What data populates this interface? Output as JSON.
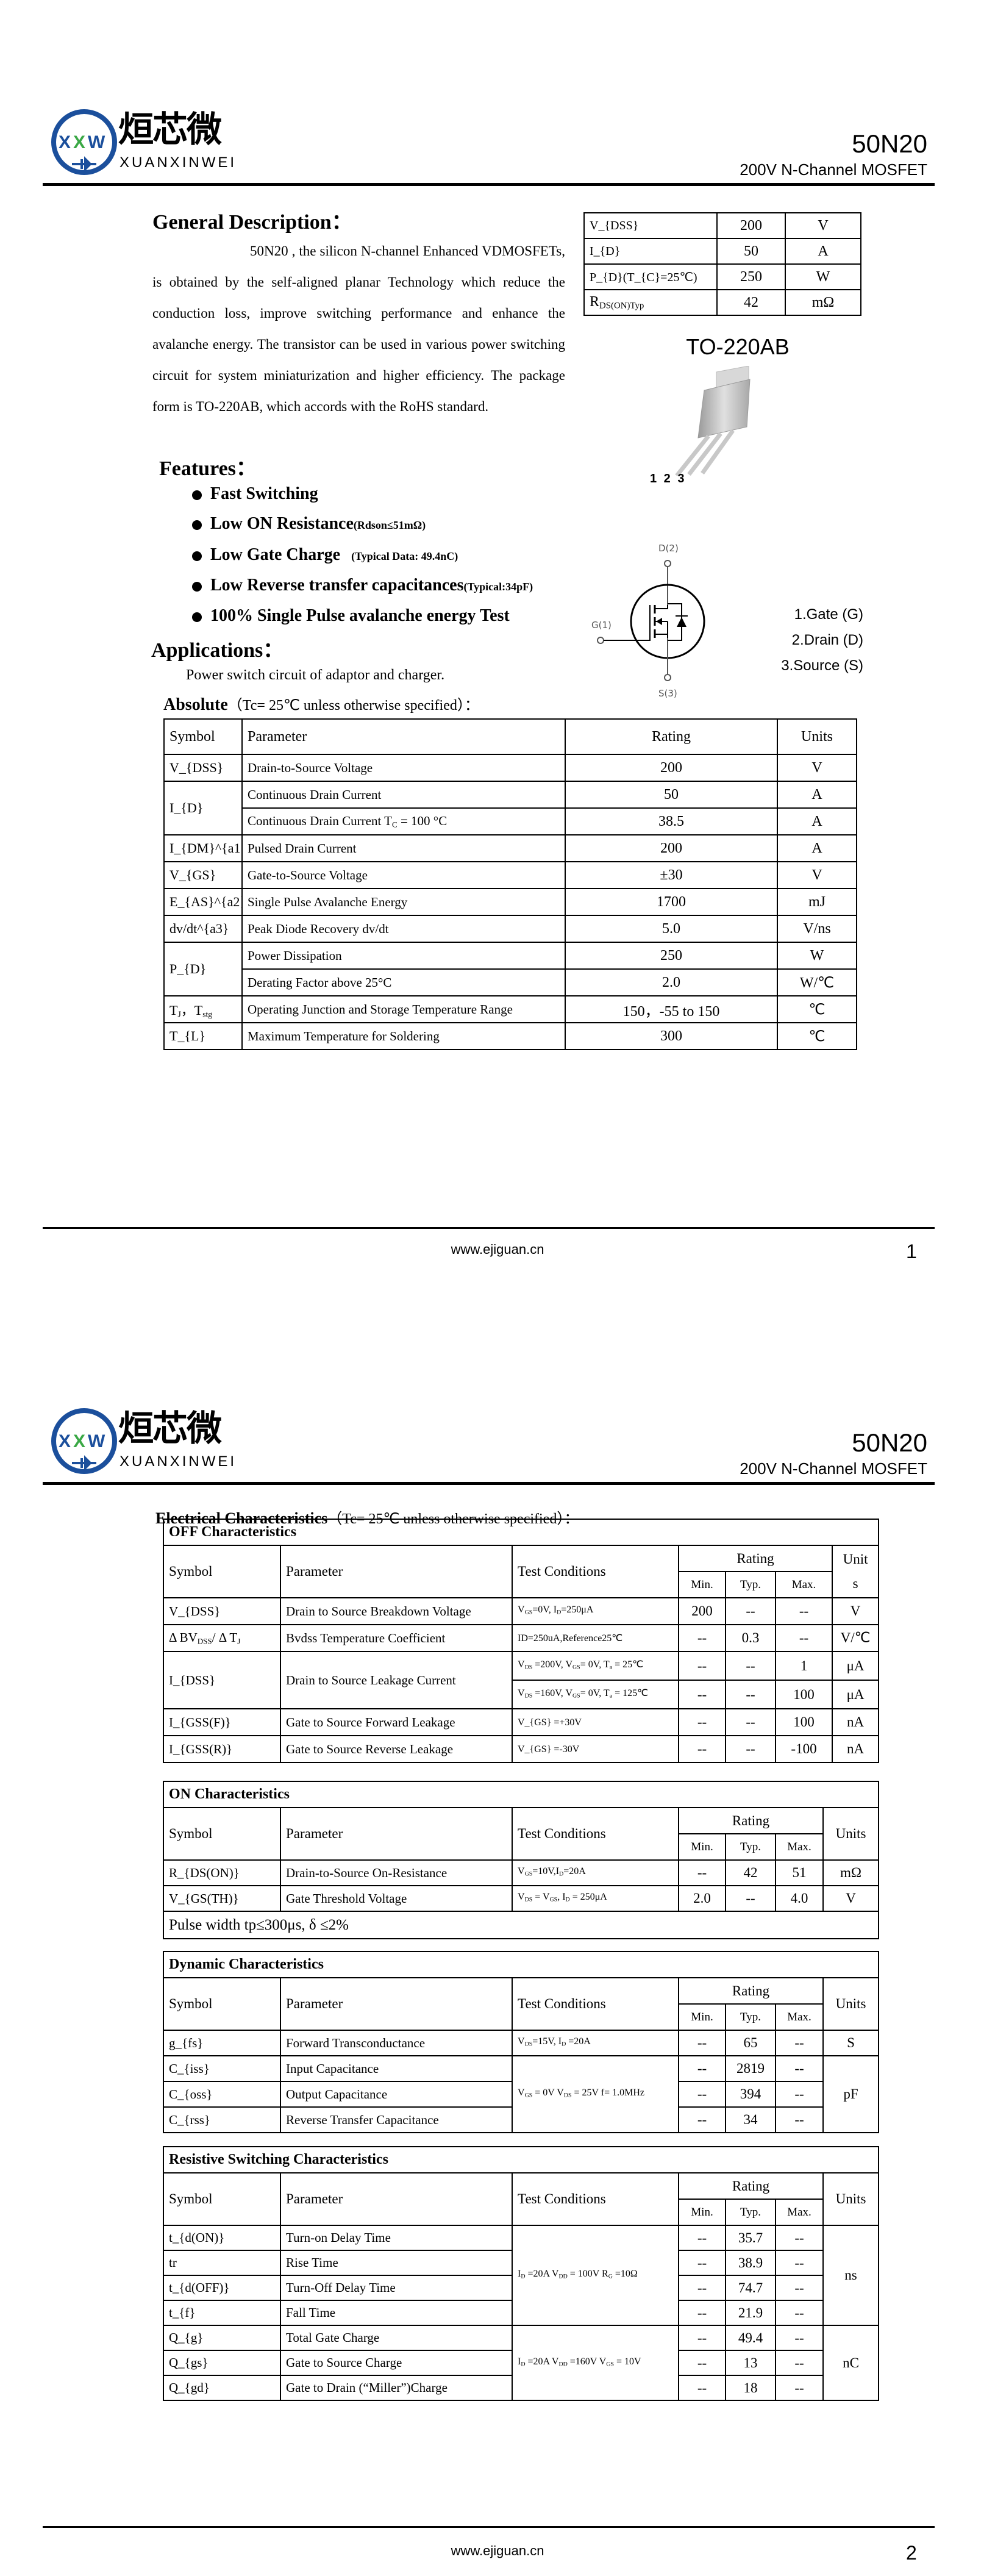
{
  "header": {
    "brand_cn": "烜芯微",
    "brand_en": "XUANXINWEI",
    "logo_letters": [
      "X",
      "X",
      "W"
    ],
    "logo_colors": {
      "blue": "#1b4f9c",
      "green": "#3aa845"
    },
    "part": "50N20",
    "subtitle": "200V N-Channel MOSFET"
  },
  "footer": {
    "url": "www.ejiguan.cn",
    "pages": [
      "1",
      "2"
    ]
  },
  "page1": {
    "general_title": "General Description：",
    "description": "50N20 , the silicon N-channel Enhanced VDMOSFETs, is obtained by the self-aligned planar Technology which reduce the conduction loss, improve switching performance and enhance the avalanche energy. The transistor can be used in various power switching circuit for system miniaturization and higher efficiency. The package form is TO-220AB, which accords with the RoHS standard.",
    "key_specs": [
      {
        "symbol": "V_{DSS}",
        "value": "200",
        "unit": "V"
      },
      {
        "symbol": "I_{D}",
        "value": "50",
        "unit": "A"
      },
      {
        "symbol": "P_{D}(T_{C}=25℃)",
        "value": "250",
        "unit": "W"
      },
      {
        "symbol": "R_{DS(ON)Typ}",
        "value": "42",
        "unit": "mΩ"
      }
    ],
    "package": "TO-220AB",
    "pin_numbers": "1 2 3",
    "features_title": "Features：",
    "features": [
      {
        "text": "Fast Switching",
        "note": ""
      },
      {
        "text": "Low ON Resistance",
        "note": "(Rdson≤51mΩ)"
      },
      {
        "text": "Low Gate Charge",
        "note": "    (Typical Data: 49.4nC)"
      },
      {
        "text": "Low Reverse transfer capacitances",
        "note": "(Typical:34pF)"
      },
      {
        "text": "100% Single Pulse avalanche energy Test",
        "note": ""
      }
    ],
    "schematic_labels": {
      "drain": "D(2)",
      "gate": "G(1)",
      "source": "S(3)"
    },
    "pin_legend": [
      "1.Gate (G)",
      "2.Drain (D)",
      "3.Source (S)"
    ],
    "applications_title": "Applications：",
    "applications_text": "Power switch circuit of adaptor and charger.",
    "absolute_title": "Absolute",
    "absolute_condition": "（Tc= 25℃  unless otherwise specified）：",
    "absolute_table": {
      "headers": [
        "Symbol",
        "Parameter",
        "Rating",
        "Units"
      ],
      "groups": [
        {
          "symbol": "V_{DSS}",
          "rows": [
            {
              "parameter": "Drain-to-Source Voltage",
              "rating": "200",
              "unit": "V"
            }
          ]
        },
        {
          "symbol": "I_{D}",
          "rows": [
            {
              "parameter": "Continuous Drain Current",
              "rating": "50",
              "unit": "A"
            },
            {
              "parameter": "Continuous Drain Current T_{C} = 100 °C",
              "rating": "38.5",
              "unit": "A"
            }
          ]
        },
        {
          "symbol": "I_{DM}^{a1}",
          "rows": [
            {
              "parameter": "Pulsed Drain Current",
              "rating": "200",
              "unit": "A"
            }
          ]
        },
        {
          "symbol": "V_{GS}",
          "rows": [
            {
              "parameter": "Gate-to-Source Voltage",
              "rating": "±30",
              "unit": "V"
            }
          ]
        },
        {
          "symbol": "E_{AS}^{a2}",
          "rows": [
            {
              "parameter": "Single Pulse Avalanche Energy",
              "rating": "1700",
              "unit": "mJ"
            }
          ]
        },
        {
          "symbol": "dv/dt^{a3}",
          "rows": [
            {
              "parameter": "Peak Diode Recovery dv/dt",
              "rating": "5.0",
              "unit": "V/ns"
            }
          ]
        },
        {
          "symbol": "P_{D}",
          "rows": [
            {
              "parameter": "Power Dissipation",
              "rating": "250",
              "unit": "W"
            },
            {
              "parameter": "Derating Factor above 25°C",
              "rating": "2.0",
              "unit": "W/℃"
            }
          ]
        },
        {
          "symbol": "T_{J}，T_{stg}",
          "rows": [
            {
              "parameter": "Operating Junction and Storage Temperature Range",
              "rating": "150，-55 to 150",
              "unit": "℃"
            }
          ]
        },
        {
          "symbol": "T_{L}",
          "rows": [
            {
              "parameter": "Maximum Temperature for Soldering",
              "rating": "300",
              "unit": "℃"
            }
          ]
        }
      ]
    }
  },
  "page2": {
    "title": "Electrical Characteristics",
    "condition": "（Tc= 25℃  unless otherwise specified）：",
    "tables": [
      {
        "title": "OFF Characteristics",
        "headers": {
          "symbol": "Symbol",
          "parameter": "Parameter",
          "condition": "Test Conditions",
          "rating": "Rating",
          "min": "Min.",
          "typ": "Typ.",
          "max": "Max.",
          "unit": "Unit s"
        },
        "groups": [
          {
            "rows": [
              {
                "symbol": "V_{DSS}",
                "parameter": "Drain to Source Breakdown Voltage",
                "condition": "V_{GS}=0V, I_{D}=250μA",
                "min": "200",
                "typ": "--",
                "max": "--",
                "unit": "V"
              }
            ]
          },
          {
            "rows": [
              {
                "symbol": "Δ BV_{DSS}/ Δ T_{J}",
                "parameter": "Bvdss Temperature Coefficient",
                "condition": "ID=250uA,Reference25℃",
                "min": "--",
                "typ": "0.3",
                "max": "--",
                "unit": "V/℃"
              }
            ]
          },
          {
            "symbol": "I_{DSS}",
            "parameter": "Drain to Source Leakage Current",
            "rows": [
              {
                "condition": "V_{DS} =200V, V_{GS}= 0V, T_{a} = 25℃",
                "min": "--",
                "typ": "--",
                "max": "1",
                "unit": "μA"
              },
              {
                "condition": "V_{DS} =160V, V_{GS}= 0V, T_{a} = 125℃",
                "min": "--",
                "typ": "--",
                "max": "100",
                "unit": "μA"
              }
            ]
          },
          {
            "rows": [
              {
                "symbol": "I_{GSS(F)}",
                "parameter": "Gate to Source Forward Leakage",
                "condition": "V_{GS} =+30V",
                "min": "--",
                "typ": "--",
                "max": "100",
                "unit": "nA"
              }
            ]
          },
          {
            "rows": [
              {
                "symbol": "I_{GSS(R)}",
                "parameter": "Gate to Source Reverse Leakage",
                "condition": "V_{GS} =-30V",
                "min": "--",
                "typ": "--",
                "max": "-100",
                "unit": "nA"
              }
            ]
          }
        ]
      },
      {
        "title": "ON Characteristics",
        "headers": {
          "symbol": "Symbol",
          "parameter": "Parameter",
          "condition": "Test Conditions",
          "rating": "Rating",
          "min": "Min.",
          "typ": "Typ.",
          "max": "Max.",
          "unit": "Units"
        },
        "groups": [
          {
            "rows": [
              {
                "symbol": "R_{DS(ON)}",
                "parameter": "Drain-to-Source On-Resistance",
                "condition": "V_{GS}=10V,I_{D}=20A",
                "min": "--",
                "typ": "42",
                "max": "51",
                "unit": "mΩ"
              }
            ]
          },
          {
            "rows": [
              {
                "symbol": "V_{GS(TH)}",
                "parameter": "Gate Threshold Voltage",
                "condition": "V_{DS} = V_{GS}, I_{D} = 250μA",
                "min": "2.0",
                "typ": "--",
                "max": "4.0",
                "unit": "V"
              }
            ]
          }
        ],
        "footnote": "Pulse width tp≤300μs, δ ≤2%"
      },
      {
        "title": "Dynamic Characteristics",
        "headers": {
          "symbol": "Symbol",
          "parameter": "Parameter",
          "condition": "Test Conditions",
          "rating": "Rating",
          "min": "Min.",
          "typ": "Typ.",
          "max": "Max.",
          "unit": "Units"
        },
        "groups": [
          {
            "rows": [
              {
                "symbol": "g_{fs}",
                "parameter": "Forward Transconductance",
                "condition": "V_{DS}=15V, I_{D} =20A",
                "min": "--",
                "typ": "65",
                "max": "--",
                "unit": "S"
              }
            ]
          },
          {
            "condition": "V_{GS} = 0V V_{DS} = 25V f= 1.0MHz",
            "unit": "pF",
            "rows": [
              {
                "symbol": "C_{iss}",
                "parameter": "Input Capacitance",
                "min": "--",
                "typ": "2819",
                "max": "--"
              },
              {
                "symbol": "C_{oss}",
                "parameter": "Output Capacitance",
                "min": "--",
                "typ": "394",
                "max": "--"
              },
              {
                "symbol": "C_{rss}",
                "parameter": "Reverse Transfer Capacitance",
                "min": "--",
                "typ": "34",
                "max": "--"
              }
            ]
          }
        ]
      },
      {
        "title": "Resistive Switching Characteristics",
        "headers": {
          "symbol": "Symbol",
          "parameter": "Parameter",
          "condition": "Test Conditions",
          "rating": "Rating",
          "min": "Min.",
          "typ": "Typ.",
          "max": "Max.",
          "unit": "Units"
        },
        "groups": [
          {
            "condition": "I_{D} =20A    V_{DD} = 100V R_{G} =10Ω",
            "unit": "ns",
            "rows": [
              {
                "symbol": "t_{d(ON)}",
                "parameter": "Turn-on Delay Time",
                "min": "--",
                "typ": "35.7",
                "max": "--"
              },
              {
                "symbol": "tr",
                "parameter": "Rise Time",
                "min": "--",
                "typ": "38.9",
                "max": "--"
              },
              {
                "symbol": "t_{d(OFF)}",
                "parameter": "Turn-Off Delay Time",
                "min": "--",
                "typ": "74.7",
                "max": "--"
              },
              {
                "symbol": "t_{f}",
                "parameter": "Fall Time",
                "min": "--",
                "typ": "21.9",
                "max": "--"
              }
            ]
          },
          {
            "condition": "I_{D} =20A    V_{DD} =160V V_{GS} = 10V",
            "unit": "nC",
            "rows": [
              {
                "symbol": "Q_{g}",
                "parameter": "Total Gate Charge",
                "min": "--",
                "typ": "49.4",
                "max": "--"
              },
              {
                "symbol": "Q_{gs}",
                "parameter": "Gate to Source Charge",
                "min": "--",
                "typ": "13",
                "max": "--"
              },
              {
                "symbol": "Q_{gd}",
                "parameter": "Gate to Drain (“Miller”)Charge",
                "min": "--",
                "typ": "18",
                "max": "--"
              }
            ]
          }
        ]
      }
    ]
  }
}
